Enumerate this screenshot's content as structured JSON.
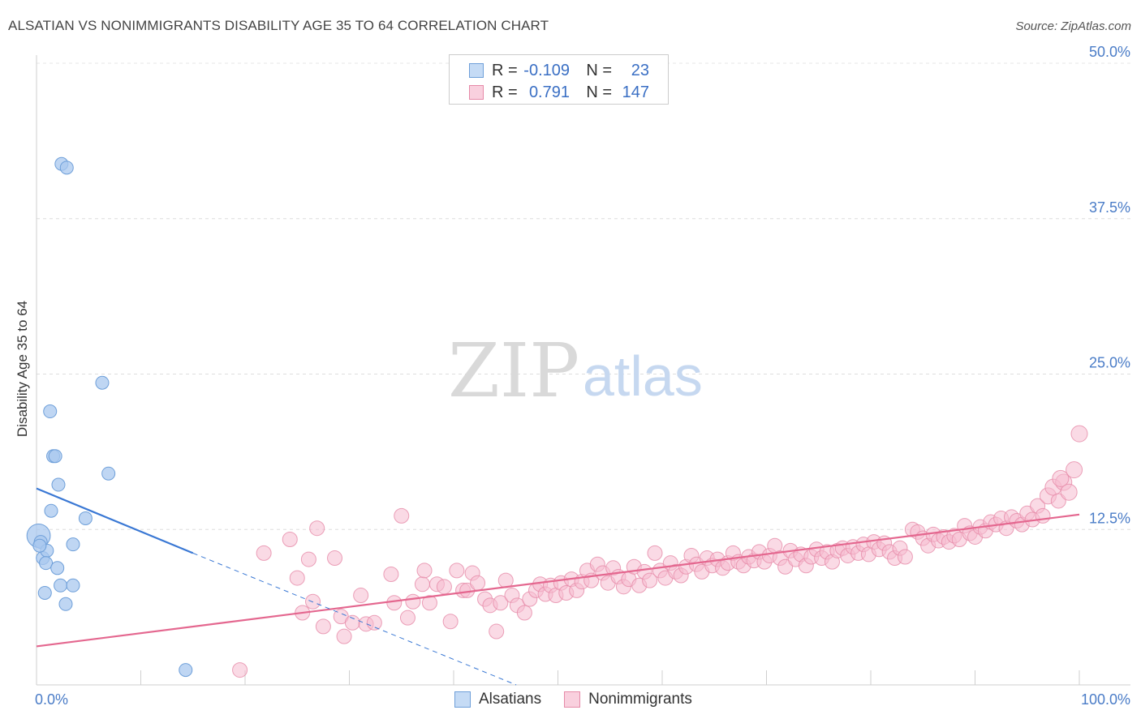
{
  "header": {
    "title": "ALSATIAN VS NONIMMIGRANTS DISABILITY AGE 35 TO 64 CORRELATION CHART",
    "source": "Source: ZipAtlas.com"
  },
  "watermark": {
    "zip": "ZIP",
    "atlas": "atlas"
  },
  "legend": {
    "rows": [
      {
        "r_label": "R =",
        "r_value": "-0.109",
        "n_label": "N =",
        "n_value": "23",
        "color": "#a9c8ef",
        "border": "#6e9fd9"
      },
      {
        "r_label": "R =",
        "r_value": "0.791",
        "n_label": "N =",
        "n_value": "147",
        "color": "#f6bcd0",
        "border": "#e68aa8"
      }
    ]
  },
  "bottom_legend": {
    "series1": "Alsatians",
    "series2": "Nonimmigrants"
  },
  "chart_data": {
    "type": "scatter",
    "title": "ALSATIAN VS NONIMMIGRANTS DISABILITY AGE 35 TO 64 CORRELATION CHART",
    "xlabel": "",
    "ylabel": "Disability Age 35 to 64",
    "xlim": [
      0,
      100
    ],
    "ylim": [
      0,
      50
    ],
    "x_tick_labels": [
      "0.0%",
      "100.0%"
    ],
    "y_ticks": [
      12.5,
      25.0,
      37.5,
      50.0
    ],
    "y_tick_labels": [
      "12.5%",
      "25.0%",
      "37.5%",
      "50.0%"
    ],
    "grid": true,
    "series": [
      {
        "name": "Alsatians",
        "color": "#a9c8ef",
        "stroke": "#6e9fd9",
        "trend": {
          "x": [
            0,
            15
          ],
          "y": [
            15.8,
            10.6
          ],
          "color": "#3a78d4",
          "dashed_to": [
            46,
            0
          ]
        },
        "points": [
          [
            0.2,
            12.0,
            1.8
          ],
          [
            0.4,
            11.5,
            1
          ],
          [
            0.6,
            10.2,
            1
          ],
          [
            1.0,
            10.8,
            1
          ],
          [
            0.9,
            9.8,
            1
          ],
          [
            1.3,
            22.0,
            1
          ],
          [
            1.4,
            14.0,
            1
          ],
          [
            1.6,
            18.4,
            1
          ],
          [
            1.8,
            18.4,
            1
          ],
          [
            2.0,
            9.4,
            1
          ],
          [
            2.1,
            16.1,
            1
          ],
          [
            2.3,
            8.0,
            1
          ],
          [
            0.8,
            7.4,
            1
          ],
          [
            3.5,
            11.3,
            1
          ],
          [
            3.5,
            8.0,
            1
          ],
          [
            2.8,
            6.5,
            1
          ],
          [
            2.4,
            41.9,
            1
          ],
          [
            2.9,
            41.6,
            1
          ],
          [
            6.3,
            24.3,
            1
          ],
          [
            6.9,
            17.0,
            1
          ],
          [
            4.7,
            13.4,
            1
          ],
          [
            14.3,
            1.2,
            1
          ],
          [
            0.3,
            11.2,
            1
          ]
        ]
      },
      {
        "name": "Nonimmigrants",
        "color": "#f6bcd0",
        "stroke": "#e68aa8",
        "trend": {
          "x": [
            0,
            100
          ],
          "y": [
            3.1,
            13.7
          ],
          "color": "#e4678f"
        },
        "points": [
          [
            19.5,
            1.2
          ],
          [
            21.8,
            10.6
          ],
          [
            24.3,
            11.7
          ],
          [
            25.0,
            8.6
          ],
          [
            25.5,
            5.8
          ],
          [
            26.1,
            10.1
          ],
          [
            26.5,
            6.7
          ],
          [
            26.9,
            12.6
          ],
          [
            27.5,
            4.7
          ],
          [
            28.6,
            10.2
          ],
          [
            29.2,
            5.5
          ],
          [
            29.5,
            3.9
          ],
          [
            30.3,
            5.0
          ],
          [
            31.1,
            7.2
          ],
          [
            31.6,
            4.9
          ],
          [
            32.4,
            5.0
          ],
          [
            34.0,
            8.9
          ],
          [
            34.3,
            6.6
          ],
          [
            35.0,
            13.6
          ],
          [
            35.6,
            5.4
          ],
          [
            36.1,
            6.7
          ],
          [
            37.0,
            8.1
          ],
          [
            37.2,
            9.2
          ],
          [
            37.7,
            6.6
          ],
          [
            38.4,
            8.1
          ],
          [
            39.1,
            7.9
          ],
          [
            39.7,
            5.1
          ],
          [
            40.3,
            9.2
          ],
          [
            40.9,
            7.6
          ],
          [
            41.3,
            7.6
          ],
          [
            41.8,
            9.0
          ],
          [
            42.3,
            8.2
          ],
          [
            43.0,
            6.9
          ],
          [
            43.5,
            6.4
          ],
          [
            44.1,
            4.3
          ],
          [
            44.5,
            6.6
          ],
          [
            45.0,
            8.4
          ],
          [
            45.6,
            7.2
          ],
          [
            46.1,
            6.4
          ],
          [
            46.8,
            5.8
          ],
          [
            47.3,
            6.9
          ],
          [
            47.9,
            7.6
          ],
          [
            48.3,
            8.1
          ],
          [
            48.8,
            7.3
          ],
          [
            49.3,
            8.0
          ],
          [
            49.8,
            7.2
          ],
          [
            50.3,
            8.2
          ],
          [
            50.8,
            7.4
          ],
          [
            51.3,
            8.5
          ],
          [
            51.8,
            7.6
          ],
          [
            52.3,
            8.3
          ],
          [
            52.8,
            9.2
          ],
          [
            53.2,
            8.4
          ],
          [
            53.8,
            9.7
          ],
          [
            54.3,
            9.0
          ],
          [
            54.8,
            8.2
          ],
          [
            55.3,
            9.4
          ],
          [
            55.8,
            8.7
          ],
          [
            56.3,
            7.9
          ],
          [
            56.8,
            8.5
          ],
          [
            57.3,
            9.5
          ],
          [
            57.8,
            8.0
          ],
          [
            58.3,
            9.1
          ],
          [
            58.8,
            8.4
          ],
          [
            59.3,
            10.6
          ],
          [
            59.8,
            9.2
          ],
          [
            60.3,
            8.6
          ],
          [
            60.8,
            9.8
          ],
          [
            61.3,
            9.1
          ],
          [
            61.8,
            8.8
          ],
          [
            62.3,
            9.5
          ],
          [
            62.8,
            10.4
          ],
          [
            63.3,
            9.7
          ],
          [
            63.8,
            9.1
          ],
          [
            64.3,
            10.2
          ],
          [
            64.8,
            9.6
          ],
          [
            65.3,
            10.1
          ],
          [
            65.8,
            9.4
          ],
          [
            66.3,
            9.8
          ],
          [
            66.8,
            10.6
          ],
          [
            67.3,
            9.9
          ],
          [
            67.8,
            9.6
          ],
          [
            68.3,
            10.3
          ],
          [
            68.8,
            10.0
          ],
          [
            69.3,
            10.7
          ],
          [
            69.8,
            9.9
          ],
          [
            70.3,
            10.4
          ],
          [
            70.8,
            11.2
          ],
          [
            71.3,
            10.2
          ],
          [
            71.8,
            9.5
          ],
          [
            72.3,
            10.8
          ],
          [
            72.8,
            10.1
          ],
          [
            73.3,
            10.5
          ],
          [
            73.8,
            9.6
          ],
          [
            74.3,
            10.3
          ],
          [
            74.8,
            10.9
          ],
          [
            75.3,
            10.2
          ],
          [
            75.8,
            10.7
          ],
          [
            76.3,
            9.9
          ],
          [
            76.8,
            10.8
          ],
          [
            77.3,
            11.0
          ],
          [
            77.8,
            10.4
          ],
          [
            78.3,
            11.1
          ],
          [
            78.8,
            10.6
          ],
          [
            79.3,
            11.3
          ],
          [
            79.8,
            10.5
          ],
          [
            80.3,
            11.5
          ],
          [
            80.8,
            10.9
          ],
          [
            81.3,
            11.4
          ],
          [
            81.8,
            10.7
          ],
          [
            82.3,
            10.2
          ],
          [
            82.8,
            11.0
          ],
          [
            83.3,
            10.3
          ],
          [
            84.0,
            12.5
          ],
          [
            84.5,
            12.3
          ],
          [
            85.0,
            11.8
          ],
          [
            85.5,
            11.2
          ],
          [
            86.0,
            12.1
          ],
          [
            86.5,
            11.6
          ],
          [
            87.0,
            11.9
          ],
          [
            87.5,
            11.5
          ],
          [
            88.0,
            12.0
          ],
          [
            88.5,
            11.7
          ],
          [
            89.0,
            12.8
          ],
          [
            89.5,
            12.2
          ],
          [
            90.0,
            11.9
          ],
          [
            90.5,
            12.7
          ],
          [
            91.0,
            12.4
          ],
          [
            91.5,
            13.1
          ],
          [
            92.0,
            12.9
          ],
          [
            92.5,
            13.4
          ],
          [
            93.0,
            12.6
          ],
          [
            93.5,
            13.5
          ],
          [
            94.0,
            13.2
          ],
          [
            94.5,
            12.9
          ],
          [
            95.0,
            13.8
          ],
          [
            95.5,
            13.3
          ],
          [
            96.0,
            14.4
          ],
          [
            96.5,
            13.6
          ],
          [
            97.0,
            15.2
          ],
          [
            97.5,
            15.9
          ],
          [
            98.0,
            14.8
          ],
          [
            98.5,
            16.3
          ],
          [
            99.0,
            15.5
          ],
          [
            99.5,
            17.3
          ],
          [
            100.0,
            20.2
          ],
          [
            98.2,
            16.6
          ]
        ]
      }
    ]
  }
}
